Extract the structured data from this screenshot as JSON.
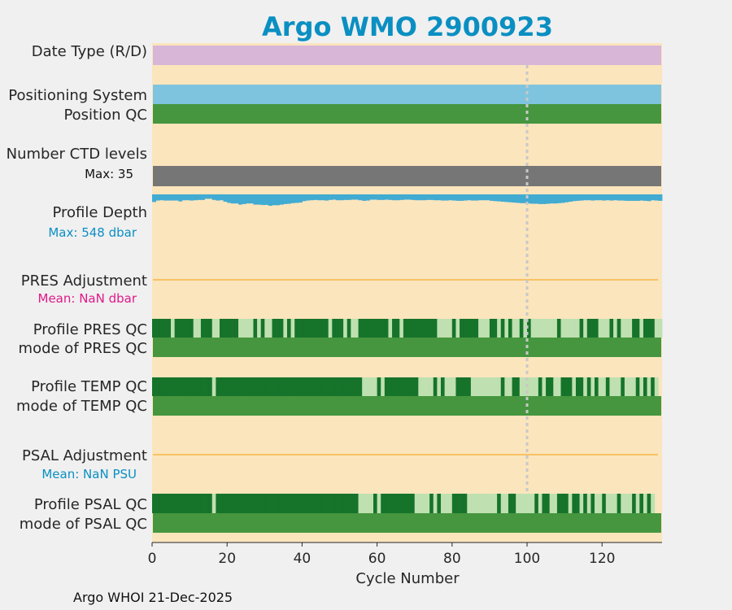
{
  "title": "Argo WMO 2900923",
  "footer": "Argo WHOI 21-Dec-2025",
  "colors": {
    "title": "#0a8fc2",
    "background": "#fbe5bd",
    "date_type": "#d8b6d8",
    "positioning": "#7ec4de",
    "qc_good": "#45963f",
    "qc_dark": "#16732a",
    "qc_light": "#bfe0b0",
    "ctd": "#767676",
    "depth": "#41abd2",
    "adjustment_line": "#f6b648",
    "marker": "#c8c8c8",
    "mean_pres_label": "#e0198a",
    "mean_psal_label": "#0a8fc2",
    "max_depth_label": "#0a8fc2"
  },
  "row_labels": {
    "date_type": "Date Type (R/D)",
    "positioning_system": "Positioning System",
    "position_qc": "Position QC",
    "ctd_levels": "Number CTD levels",
    "ctd_max": "Max: 35",
    "profile_depth": "Profile Depth",
    "depth_max": "Max:  548 dbar",
    "pres_adjustment": "PRES Adjustment",
    "pres_mean": "Mean:  NaN dbar",
    "profile_pres_qc": "Profile PRES QC",
    "mode_pres_qc": "mode of PRES QC",
    "profile_temp_qc": "Profile TEMP QC",
    "mode_temp_qc": "mode of TEMP QC",
    "psal_adjustment": "PSAL Adjustment",
    "psal_mean": "Mean:  NaN PSU",
    "profile_psal_qc": "Profile PSAL QC",
    "mode_psal_qc": "mode of PSAL QC"
  },
  "chart_data": {
    "type": "timeline",
    "xlabel": "Cycle Number",
    "xlim": [
      0,
      136
    ],
    "xticks": [
      0,
      20,
      40,
      60,
      80,
      100,
      120
    ],
    "marker_cycle": 100,
    "ctd_levels_max": 35,
    "profile_depth_max_dbar": 548,
    "profile_depth_fraction": [
      0.52,
      0.42,
      0.4,
      0.42,
      0.42,
      0.42,
      0.42,
      0.48,
      0.4,
      0.4,
      0.42,
      0.4,
      0.38,
      0.38,
      0.3,
      0.3,
      0.38,
      0.42,
      0.4,
      0.5,
      0.58,
      0.62,
      0.62,
      0.7,
      0.66,
      0.62,
      0.62,
      0.7,
      0.7,
      0.72,
      0.72,
      0.78,
      0.74,
      0.74,
      0.7,
      0.66,
      0.64,
      0.6,
      0.58,
      0.56,
      0.46,
      0.42,
      0.4,
      0.38,
      0.4,
      0.4,
      0.42,
      0.38,
      0.36,
      0.4,
      0.4,
      0.38,
      0.38,
      0.36,
      0.36,
      0.4,
      0.44,
      0.42,
      0.36,
      0.36,
      0.38,
      0.38,
      0.36,
      0.38,
      0.4,
      0.4,
      0.38,
      0.36,
      0.36,
      0.38,
      0.4,
      0.4,
      0.4,
      0.38,
      0.38,
      0.4,
      0.4,
      0.42,
      0.42,
      0.4,
      0.42,
      0.44,
      0.44,
      0.42,
      0.4,
      0.42,
      0.42,
      0.4,
      0.4,
      0.4,
      0.44,
      0.46,
      0.48,
      0.5,
      0.52,
      0.54,
      0.56,
      0.58,
      0.6,
      0.6,
      0.62,
      0.64,
      0.64,
      0.66,
      0.66,
      0.64,
      0.62,
      0.62,
      0.6,
      0.58,
      0.54,
      0.5,
      0.46,
      0.44,
      0.42,
      0.4,
      0.4,
      0.42,
      0.4,
      0.4,
      0.42,
      0.4,
      0.42,
      0.4,
      0.42,
      0.42,
      0.44,
      0.44,
      0.44,
      0.44,
      0.42,
      0.44,
      0.46,
      0.4,
      0.42,
      0.44
    ],
    "profile_pres_qc": "AAAAABAAAAABBAAABBAAAAABBBBABABBAAABABAAAAAAAAABAAABABBAAAAAAAABAABAAAAAAAAABBBBABAAAAABBBAABABABBABABBBBBBBABBBBBABAAABBBABABBBAABAAABB",
    "profile_temp_qc": "AAAAAAAAAAAAAAAABAAAAAAAAAAAAAAAAAAAAAAAAAAAAAAAAAAAAAAABBBBABAAAAAAAAABBBBABABBBAAAABBBBBBBBABBAABBBBBABAABBAAABAABABABBABBBABBBABABAB",
    "profile_psal_qc": "AAAAAAAAAAAAAAAABAAAAAAAAAAAAAAAAAAAAAAAAAAAAAAAAAAAAAABBBBABAAAAAAAAABBBBABABBBAAAABBBBBBBBABBAABBBBBABAABBAAABAABABABBABBBABBBABABAB",
    "qc_codes": {
      "A": "good (dark)",
      "B": "probably good (light)"
    }
  }
}
